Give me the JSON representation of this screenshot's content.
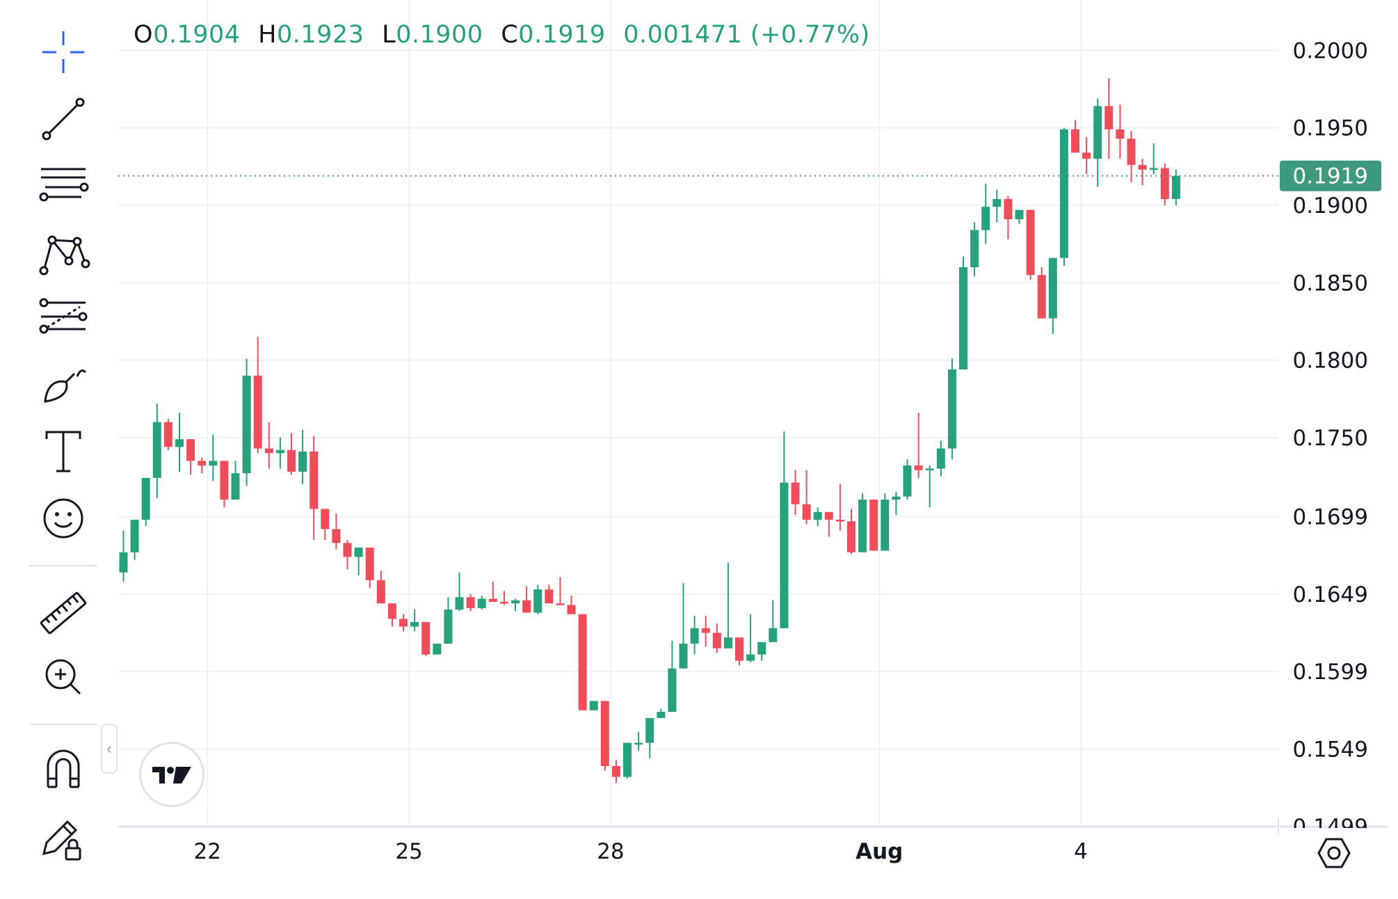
{
  "legend": {
    "o_label": "O",
    "o_value": "0.1904",
    "h_label": "H",
    "h_value": "0.1923",
    "l_label": "L",
    "l_value": "0.1900",
    "c_label": "C",
    "c_value": "0.1919",
    "change": "0.001471 (+0.77%)"
  },
  "toolbar": {
    "tools": [
      "crosshair-icon",
      "trend-line-icon",
      "parallel-channel-icon",
      "pattern-icon",
      "fib-retracement-icon",
      "brush-icon",
      "text-icon",
      "emoji-icon",
      "ruler-icon",
      "zoom-in-icon",
      "magnet-icon",
      "lock-drawings-icon"
    ]
  },
  "colors": {
    "up": "#26a17b",
    "down": "#ef4d5a",
    "grid": "#f0f1f4",
    "axis_text": "#131722",
    "last_price_bg": "#3e9a7d",
    "last_price_line": "#3e9a7d",
    "accent": "#2962ff"
  },
  "chart_data": {
    "type": "candlestick",
    "y_ticks": [
      "0.2000",
      "0.1950",
      "0.1900",
      "0.1850",
      "0.1800",
      "0.1750",
      "0.1699",
      "0.1649",
      "0.1599",
      "0.1549",
      "0.1499"
    ],
    "ylim": [
      0.14935,
      0.20325
    ],
    "x_ticks": [
      {
        "label": "22",
        "bar": 7.5,
        "bold": false
      },
      {
        "label": "25",
        "bar": 25.5,
        "bold": false
      },
      {
        "label": "28",
        "bar": 43.5,
        "bold": false
      },
      {
        "label": "Aug",
        "bar": 67.5,
        "bold": true
      },
      {
        "label": "4",
        "bar": 85.5,
        "bold": false
      }
    ],
    "last_price": "0.1919",
    "candles": [
      [
        0.1663,
        0.1676,
        0.1657,
        0.169
      ],
      [
        0.1676,
        0.1697,
        0.1671,
        0.1697
      ],
      [
        0.1697,
        0.1724,
        0.1693,
        0.1724
      ],
      [
        0.1724,
        0.176,
        0.1711,
        0.1772
      ],
      [
        0.176,
        0.1744,
        0.1742,
        0.1762
      ],
      [
        0.1744,
        0.1749,
        0.1728,
        0.1766
      ],
      [
        0.1749,
        0.1735,
        0.1726,
        0.1749
      ],
      [
        0.1735,
        0.1732,
        0.1727,
        0.1737
      ],
      [
        0.1732,
        0.1735,
        0.1722,
        0.1752
      ],
      [
        0.1735,
        0.171,
        0.1705,
        0.1735
      ],
      [
        0.171,
        0.1727,
        0.171,
        0.1735
      ],
      [
        0.1727,
        0.179,
        0.1719,
        0.1801
      ],
      [
        0.179,
        0.1743,
        0.174,
        0.1815
      ],
      [
        0.1743,
        0.174,
        0.173,
        0.176
      ],
      [
        0.174,
        0.1742,
        0.173,
        0.175
      ],
      [
        0.1742,
        0.1728,
        0.1726,
        0.1753
      ],
      [
        0.1728,
        0.1741,
        0.172,
        0.1755
      ],
      [
        0.1741,
        0.1704,
        0.1684,
        0.1751
      ],
      [
        0.1704,
        0.1691,
        0.1684,
        0.1704
      ],
      [
        0.1691,
        0.1682,
        0.1678,
        0.1701
      ],
      [
        0.1682,
        0.1673,
        0.1665,
        0.1684
      ],
      [
        0.1673,
        0.1679,
        0.1661,
        0.1679
      ],
      [
        0.1679,
        0.1658,
        0.1653,
        0.1679
      ],
      [
        0.1658,
        0.1643,
        0.1643,
        0.1664
      ],
      [
        0.1643,
        0.1633,
        0.1628,
        0.1643
      ],
      [
        0.1633,
        0.1628,
        0.1625,
        0.1636
      ],
      [
        0.1628,
        0.1631,
        0.1625,
        0.1639
      ],
      [
        0.1631,
        0.161,
        0.1609,
        0.1631
      ],
      [
        0.161,
        0.1617,
        0.161,
        0.1617
      ],
      [
        0.1617,
        0.1639,
        0.1617,
        0.1647
      ],
      [
        0.1639,
        0.1647,
        0.1638,
        0.1663
      ],
      [
        0.1647,
        0.164,
        0.1638,
        0.1649
      ],
      [
        0.164,
        0.1646,
        0.1639,
        0.1648
      ],
      [
        0.1646,
        0.1644,
        0.1644,
        0.1657
      ],
      [
        0.1644,
        0.1643,
        0.1642,
        0.1651
      ],
      [
        0.1643,
        0.1645,
        0.1638,
        0.1646
      ],
      [
        0.1645,
        0.1637,
        0.1637,
        0.1654
      ],
      [
        0.1637,
        0.1652,
        0.1636,
        0.1655
      ],
      [
        0.1652,
        0.1643,
        0.1643,
        0.1655
      ],
      [
        0.1643,
        0.1642,
        0.1642,
        0.166
      ],
      [
        0.1642,
        0.1636,
        0.1636,
        0.1648
      ],
      [
        0.1636,
        0.1574,
        0.1574,
        0.1636
      ],
      [
        0.1574,
        0.158,
        0.1574,
        0.158
      ],
      [
        0.158,
        0.1538,
        0.1535,
        0.158
      ],
      [
        0.1538,
        0.1531,
        0.1527,
        0.1542
      ],
      [
        0.1531,
        0.1553,
        0.153,
        0.1553
      ],
      [
        0.1553,
        0.1553,
        0.1548,
        0.156
      ],
      [
        0.1553,
        0.1569,
        0.1543,
        0.1569
      ],
      [
        0.1569,
        0.1573,
        0.1573,
        0.1575
      ],
      [
        0.1573,
        0.1601,
        0.1573,
        0.1619
      ],
      [
        0.1601,
        0.1617,
        0.1601,
        0.1656
      ],
      [
        0.1617,
        0.1627,
        0.161,
        0.1635
      ],
      [
        0.1627,
        0.1624,
        0.1615,
        0.1635
      ],
      [
        0.1624,
        0.1614,
        0.1611,
        0.163
      ],
      [
        0.1614,
        0.1621,
        0.1615,
        0.1669
      ],
      [
        0.1621,
        0.1606,
        0.1603,
        0.1621
      ],
      [
        0.1606,
        0.161,
        0.1605,
        0.1636
      ],
      [
        0.161,
        0.1618,
        0.1606,
        0.1618
      ],
      [
        0.1618,
        0.1627,
        0.1618,
        0.1645
      ],
      [
        0.1627,
        0.1721,
        0.1627,
        0.1754
      ],
      [
        0.1721,
        0.1707,
        0.17,
        0.1729
      ],
      [
        0.1707,
        0.1697,
        0.1694,
        0.1729
      ],
      [
        0.1697,
        0.1702,
        0.1693,
        0.1705
      ],
      [
        0.1702,
        0.1697,
        0.1686,
        0.1702
      ],
      [
        0.1697,
        0.1696,
        0.169,
        0.172
      ],
      [
        0.1696,
        0.1676,
        0.1675,
        0.1704
      ],
      [
        0.1676,
        0.171,
        0.1676,
        0.1714
      ],
      [
        0.171,
        0.1677,
        0.1677,
        0.171
      ],
      [
        0.1677,
        0.171,
        0.1677,
        0.1714
      ],
      [
        0.171,
        0.1712,
        0.17,
        0.1715
      ],
      [
        0.1712,
        0.1732,
        0.171,
        0.1736
      ],
      [
        0.1732,
        0.1729,
        0.1724,
        0.1766
      ],
      [
        0.1729,
        0.173,
        0.1705,
        0.1732
      ],
      [
        0.173,
        0.1743,
        0.1725,
        0.1748
      ],
      [
        0.1743,
        0.1794,
        0.1736,
        0.1801
      ],
      [
        0.1794,
        0.186,
        0.1794,
        0.1867
      ],
      [
        0.186,
        0.1884,
        0.1854,
        0.1889
      ],
      [
        0.1884,
        0.1899,
        0.1875,
        0.1914
      ],
      [
        0.1899,
        0.1904,
        0.1889,
        0.191
      ],
      [
        0.1904,
        0.1891,
        0.1878,
        0.1906
      ],
      [
        0.1891,
        0.1897,
        0.1888,
        0.1897
      ],
      [
        0.1897,
        0.1855,
        0.1852,
        0.1897
      ],
      [
        0.1855,
        0.1827,
        0.1827,
        0.186
      ],
      [
        0.1827,
        0.1866,
        0.1817,
        0.1866
      ],
      [
        0.1866,
        0.1949,
        0.1861,
        0.195
      ],
      [
        0.1949,
        0.1934,
        0.1934,
        0.1955
      ],
      [
        0.1934,
        0.193,
        0.192,
        0.1944
      ],
      [
        0.193,
        0.1964,
        0.1912,
        0.1969
      ],
      [
        0.1964,
        0.1949,
        0.193,
        0.1982
      ],
      [
        0.1949,
        0.1943,
        0.193,
        0.1965
      ],
      [
        0.1943,
        0.1926,
        0.1915,
        0.1948
      ],
      [
        0.1926,
        0.1923,
        0.1913,
        0.193
      ],
      [
        0.1923,
        0.1924,
        0.192,
        0.194
      ],
      [
        0.1924,
        0.1904,
        0.19,
        0.1927
      ],
      [
        0.1904,
        0.1919,
        0.19,
        0.1923
      ]
    ]
  }
}
